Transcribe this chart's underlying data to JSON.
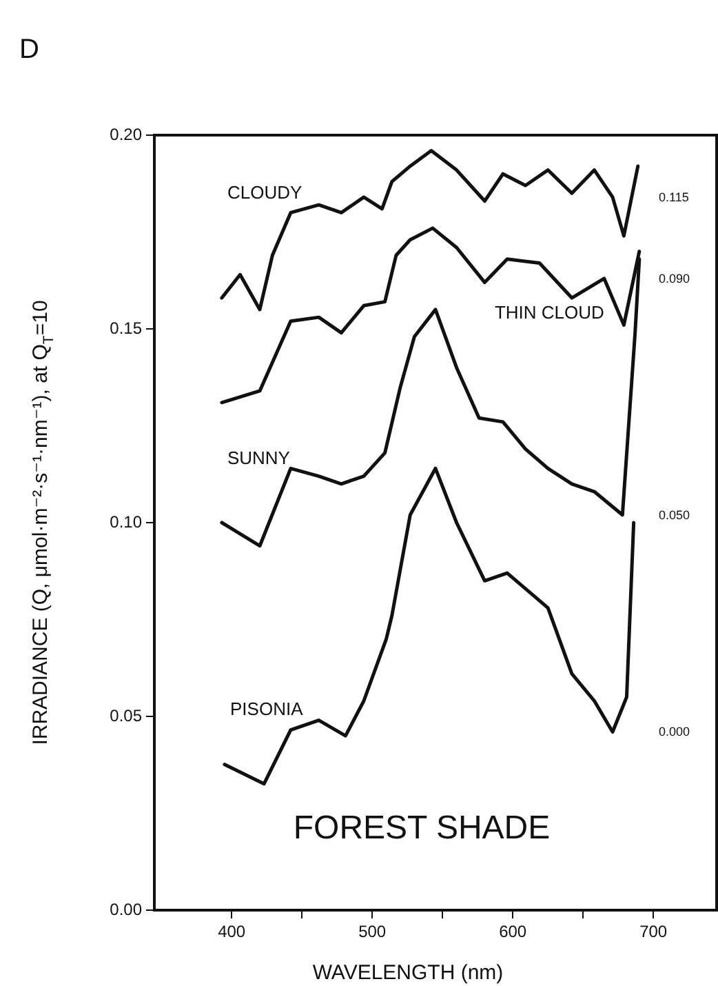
{
  "chart_data": {
    "type": "line",
    "title": "FOREST SHADE",
    "xlabel": "WAVELENGTH (nm)",
    "ylabel": "IRRADIANCE (Q, μmol·m⁻²·s⁻¹·nm⁻¹), at Q$_{T}$=10",
    "xlim": [
      345,
      745
    ],
    "ylim": [
      0,
      0.2
    ],
    "xticks": [
      400,
      {
        "value": 450,
        "label": null
      },
      500,
      {
        "value": 550,
        "label": null
      },
      600,
      {
        "value": 650,
        "label": null
      },
      700
    ],
    "yticks": [
      {
        "value": 0,
        "label": "0.00"
      },
      {
        "value": 0.05,
        "label": "0.05"
      },
      {
        "value": 0.1,
        "label": "0.10"
      },
      {
        "value": 0.15,
        "label": "0.15"
      },
      {
        "value": 0.2,
        "label": "0.20"
      }
    ],
    "grid": false,
    "legend": false,
    "marker": "none",
    "line_style": "solid",
    "series": [
      {
        "name": "CLOUDY",
        "color": "#111111",
        "x": [
          393,
          406,
          420,
          429,
          442,
          462,
          478,
          494,
          507,
          514,
          527,
          542,
          560,
          580,
          593,
          609,
          625,
          642,
          658,
          671,
          679,
          689
        ],
        "values": [
          0.158,
          0.164,
          0.155,
          0.169,
          0.18,
          0.182,
          0.18,
          0.184,
          0.181,
          0.188,
          0.192,
          0.196,
          0.191,
          0.183,
          0.19,
          0.187,
          0.191,
          0.185,
          0.191,
          0.184,
          0.174,
          0.192
        ]
      },
      {
        "name": "THIN CLOUD",
        "color": "#111111",
        "x": [
          393,
          420,
          442,
          462,
          478,
          494,
          509,
          517,
          527,
          543,
          560,
          580,
          596,
          619,
          642,
          665,
          679,
          690
        ],
        "values": [
          0.131,
          0.134,
          0.152,
          0.153,
          0.149,
          0.156,
          0.157,
          0.169,
          0.173,
          0.176,
          0.171,
          0.162,
          0.168,
          0.167,
          0.158,
          0.163,
          0.151,
          0.17
        ]
      },
      {
        "name": "SUNNY",
        "color": "#111111",
        "x": [
          393,
          420,
          442,
          462,
          478,
          494,
          509,
          520,
          530,
          545,
          560,
          576,
          593,
          609,
          625,
          642,
          658,
          678,
          687,
          690
        ],
        "values": [
          0.1,
          0.094,
          0.114,
          0.112,
          0.11,
          0.112,
          0.118,
          0.135,
          0.148,
          0.155,
          0.14,
          0.127,
          0.126,
          0.119,
          0.114,
          0.11,
          0.108,
          0.102,
          0.149,
          0.168
        ]
      },
      {
        "name": "PISONIA",
        "color": "#111111",
        "x": [
          395,
          423,
          442,
          462,
          481,
          494,
          510,
          514,
          527,
          545,
          560,
          580,
          596,
          625,
          642,
          658,
          671,
          681,
          686
        ],
        "values": [
          0.0376,
          0.0326,
          0.0465,
          0.049,
          0.045,
          0.054,
          0.07,
          0.076,
          0.102,
          0.114,
          0.1,
          0.085,
          0.087,
          0.078,
          0.061,
          0.054,
          0.046,
          0.055,
          0.1
        ]
      }
    ],
    "annotations": [
      "D",
      "0.115",
      "0.090",
      "0.050",
      "0.000"
    ]
  }
}
